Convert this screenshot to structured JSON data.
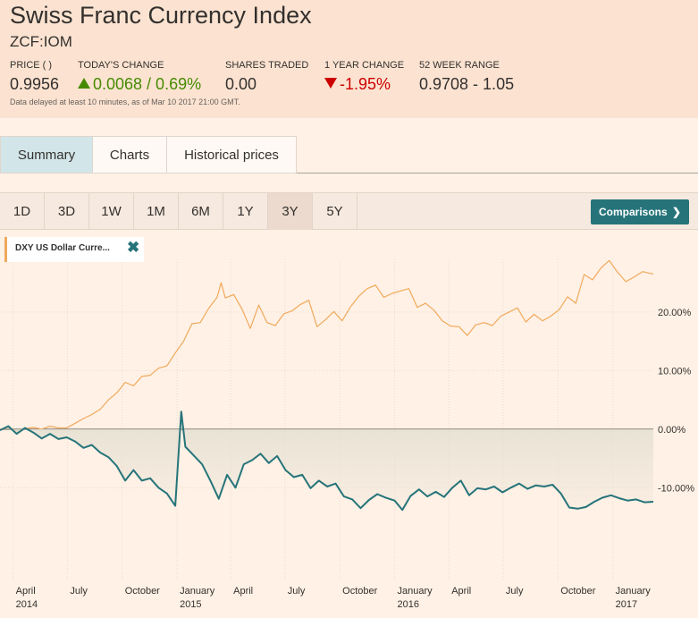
{
  "header": {
    "title": "Swiss Franc Currency Index",
    "ticker": "ZCF:IOM",
    "price_label": "PRICE ( )",
    "price_value": "0.9956",
    "change_label": "TODAY'S CHANGE",
    "change_value": "0.0068 / 0.69%",
    "shares_label": "SHARES TRADED",
    "shares_value": "0.00",
    "year_change_label": "1 YEAR CHANGE",
    "year_change_value": "-1.95%",
    "range_label": "52 WEEK RANGE",
    "range_value": "0.9708 - 1.05",
    "disclaimer": "Data delayed at least 10 minutes, as of Mar 10 2017 21:00 GMT.",
    "up_color": "#458b00",
    "down_color": "#cc0000"
  },
  "tabs": [
    {
      "label": "Summary",
      "active": true
    },
    {
      "label": "Charts",
      "active": false
    },
    {
      "label": "Historical prices",
      "active": false
    }
  ],
  "ranges": [
    {
      "label": "1D",
      "active": false
    },
    {
      "label": "3D",
      "active": false
    },
    {
      "label": "1W",
      "active": false
    },
    {
      "label": "1M",
      "active": false
    },
    {
      "label": "6M",
      "active": false
    },
    {
      "label": "1Y",
      "active": false
    },
    {
      "label": "3Y",
      "active": true
    },
    {
      "label": "5Y",
      "active": false
    }
  ],
  "comparisons_label": "Comparisons",
  "comparisons_icon": "chevron-right-icon",
  "legend": {
    "label": "DXY US Dollar Curre...",
    "remove_icon": "close-icon",
    "color": "#f0a95c"
  },
  "chart_data": {
    "type": "line",
    "y_tick_labels": [
      "20.00%",
      "10.00%",
      "0.00%",
      "-10.00%"
    ],
    "y_ticks": [
      20,
      10,
      0,
      -10
    ],
    "ylim": [
      -26,
      29
    ],
    "x_tick_labels": [
      {
        "month": "April",
        "year": "2014",
        "date": "2014-04-01"
      },
      {
        "month": "July",
        "year": "",
        "date": "2014-07-01"
      },
      {
        "month": "October",
        "year": "",
        "date": "2014-10-01"
      },
      {
        "month": "January",
        "year": "2015",
        "date": "2015-01-01"
      },
      {
        "month": "April",
        "year": "",
        "date": "2015-04-01"
      },
      {
        "month": "July",
        "year": "",
        "date": "2015-07-01"
      },
      {
        "month": "October",
        "year": "",
        "date": "2015-10-01"
      },
      {
        "month": "January",
        "year": "2016",
        "date": "2016-01-01"
      },
      {
        "month": "April",
        "year": "",
        "date": "2016-04-01"
      },
      {
        "month": "July",
        "year": "",
        "date": "2016-07-01"
      },
      {
        "month": "October",
        "year": "",
        "date": "2016-10-01"
      },
      {
        "month": "January",
        "year": "2017",
        "date": "2017-01-01"
      }
    ],
    "xlim": [
      "2014-03-10",
      "2017-03-10"
    ],
    "series": [
      {
        "name": "DXY US Dollar Curre...",
        "color": "#f0a95c",
        "fill": false,
        "points": [
          [
            "2014-03-10",
            0.0
          ],
          [
            "2014-03-24",
            0.2
          ],
          [
            "2014-04-07",
            -0.3
          ],
          [
            "2014-04-21",
            0.1
          ],
          [
            "2014-05-05",
            0.3
          ],
          [
            "2014-05-19",
            0.0
          ],
          [
            "2014-06-02",
            0.5
          ],
          [
            "2014-06-16",
            0.2
          ],
          [
            "2014-06-30",
            0.2
          ],
          [
            "2014-07-14",
            1.0
          ],
          [
            "2014-07-28",
            1.8
          ],
          [
            "2014-08-11",
            2.5
          ],
          [
            "2014-08-25",
            3.4
          ],
          [
            "2014-09-08",
            5.0
          ],
          [
            "2014-09-22",
            6.2
          ],
          [
            "2014-10-06",
            8.0
          ],
          [
            "2014-10-20",
            7.4
          ],
          [
            "2014-11-03",
            9.0
          ],
          [
            "2014-11-17",
            9.2
          ],
          [
            "2014-12-01",
            10.4
          ],
          [
            "2014-12-15",
            10.8
          ],
          [
            "2014-12-29",
            13.0
          ],
          [
            "2015-01-12",
            15.0
          ],
          [
            "2015-01-26",
            18.0
          ],
          [
            "2015-02-09",
            18.2
          ],
          [
            "2015-02-23",
            20.6
          ],
          [
            "2015-03-09",
            22.5
          ],
          [
            "2015-03-16",
            25.0
          ],
          [
            "2015-03-23",
            22.4
          ],
          [
            "2015-04-06",
            23.0
          ],
          [
            "2015-04-20",
            20.5
          ],
          [
            "2015-05-04",
            17.2
          ],
          [
            "2015-05-18",
            21.2
          ],
          [
            "2015-06-01",
            18.2
          ],
          [
            "2015-06-15",
            17.7
          ],
          [
            "2015-06-29",
            19.7
          ],
          [
            "2015-07-13",
            20.2
          ],
          [
            "2015-07-27",
            21.3
          ],
          [
            "2015-08-10",
            22.0
          ],
          [
            "2015-08-24",
            17.5
          ],
          [
            "2015-09-07",
            18.7
          ],
          [
            "2015-09-21",
            20.1
          ],
          [
            "2015-10-05",
            18.5
          ],
          [
            "2015-10-19",
            20.9
          ],
          [
            "2015-11-02",
            22.7
          ],
          [
            "2015-11-16",
            24.0
          ],
          [
            "2015-11-30",
            24.6
          ],
          [
            "2015-12-14",
            22.5
          ],
          [
            "2015-12-28",
            23.2
          ],
          [
            "2016-01-11",
            23.6
          ],
          [
            "2016-01-25",
            24.0
          ],
          [
            "2016-02-08",
            20.8
          ],
          [
            "2016-02-22",
            21.5
          ],
          [
            "2016-03-07",
            20.3
          ],
          [
            "2016-03-21",
            18.5
          ],
          [
            "2016-04-04",
            17.6
          ],
          [
            "2016-04-18",
            17.5
          ],
          [
            "2016-05-02",
            16.0
          ],
          [
            "2016-05-16",
            17.8
          ],
          [
            "2016-05-30",
            18.2
          ],
          [
            "2016-06-13",
            17.7
          ],
          [
            "2016-06-27",
            19.3
          ],
          [
            "2016-07-11",
            20.0
          ],
          [
            "2016-07-25",
            20.7
          ],
          [
            "2016-08-08",
            18.3
          ],
          [
            "2016-08-22",
            19.6
          ],
          [
            "2016-09-05",
            18.5
          ],
          [
            "2016-09-19",
            19.3
          ],
          [
            "2016-10-03",
            20.4
          ],
          [
            "2016-10-17",
            22.6
          ],
          [
            "2016-10-31",
            21.5
          ],
          [
            "2016-11-14",
            26.4
          ],
          [
            "2016-11-28",
            25.5
          ],
          [
            "2016-12-12",
            27.5
          ],
          [
            "2016-12-26",
            28.8
          ],
          [
            "2017-01-09",
            26.8
          ],
          [
            "2017-01-23",
            25.2
          ],
          [
            "2017-02-06",
            26.0
          ],
          [
            "2017-02-20",
            26.9
          ],
          [
            "2017-03-10",
            26.5
          ]
        ]
      },
      {
        "name": "ZCF:IOM",
        "color": "#26747a",
        "fill": true,
        "fill_color": "#e3dfd1",
        "points": [
          [
            "2014-03-10",
            -0.2
          ],
          [
            "2014-03-24",
            0.5
          ],
          [
            "2014-04-07",
            -0.8
          ],
          [
            "2014-04-21",
            0.2
          ],
          [
            "2014-05-05",
            -0.6
          ],
          [
            "2014-05-19",
            -1.6
          ],
          [
            "2014-06-02",
            -0.8
          ],
          [
            "2014-06-16",
            -1.7
          ],
          [
            "2014-06-30",
            -1.4
          ],
          [
            "2014-07-14",
            -2.1
          ],
          [
            "2014-07-28",
            -3.2
          ],
          [
            "2014-08-11",
            -2.7
          ],
          [
            "2014-08-25",
            -4.0
          ],
          [
            "2014-09-08",
            -4.8
          ],
          [
            "2014-09-22",
            -6.3
          ],
          [
            "2014-10-06",
            -8.8
          ],
          [
            "2014-10-20",
            -7.0
          ],
          [
            "2014-11-03",
            -8.8
          ],
          [
            "2014-11-17",
            -8.4
          ],
          [
            "2014-12-01",
            -10.0
          ],
          [
            "2014-12-15",
            -11.0
          ],
          [
            "2014-12-29",
            -13.1
          ],
          [
            "2015-01-08",
            3.0
          ],
          [
            "2015-01-15",
            -3.0
          ],
          [
            "2015-01-29",
            -4.5
          ],
          [
            "2015-02-12",
            -6.0
          ],
          [
            "2015-02-26",
            -8.8
          ],
          [
            "2015-03-12",
            -11.9
          ],
          [
            "2015-03-26",
            -7.8
          ],
          [
            "2015-04-09",
            -10.0
          ],
          [
            "2015-04-23",
            -6.0
          ],
          [
            "2015-05-07",
            -5.3
          ],
          [
            "2015-05-21",
            -4.2
          ],
          [
            "2015-06-04",
            -5.8
          ],
          [
            "2015-06-18",
            -4.6
          ],
          [
            "2015-07-02",
            -7.0
          ],
          [
            "2015-07-16",
            -8.2
          ],
          [
            "2015-07-30",
            -7.8
          ],
          [
            "2015-08-13",
            -10.1
          ],
          [
            "2015-08-27",
            -8.8
          ],
          [
            "2015-09-10",
            -9.8
          ],
          [
            "2015-09-24",
            -9.3
          ],
          [
            "2015-10-08",
            -11.5
          ],
          [
            "2015-10-22",
            -12.0
          ],
          [
            "2015-11-05",
            -13.5
          ],
          [
            "2015-11-19",
            -12.1
          ],
          [
            "2015-12-03",
            -11.1
          ],
          [
            "2015-12-17",
            -11.7
          ],
          [
            "2016-01-01",
            -12.2
          ],
          [
            "2016-01-14",
            -13.8
          ],
          [
            "2016-01-28",
            -11.4
          ],
          [
            "2016-02-11",
            -10.3
          ],
          [
            "2016-02-25",
            -11.5
          ],
          [
            "2016-03-10",
            -10.7
          ],
          [
            "2016-03-24",
            -11.6
          ],
          [
            "2016-04-07",
            -10.0
          ],
          [
            "2016-04-21",
            -8.8
          ],
          [
            "2016-05-05",
            -11.3
          ],
          [
            "2016-05-19",
            -10.1
          ],
          [
            "2016-06-02",
            -10.3
          ],
          [
            "2016-06-16",
            -9.8
          ],
          [
            "2016-06-30",
            -10.8
          ],
          [
            "2016-07-14",
            -10.0
          ],
          [
            "2016-07-28",
            -9.3
          ],
          [
            "2016-08-11",
            -10.2
          ],
          [
            "2016-08-25",
            -9.6
          ],
          [
            "2016-09-08",
            -9.8
          ],
          [
            "2016-09-22",
            -9.5
          ],
          [
            "2016-10-06",
            -11.0
          ],
          [
            "2016-10-20",
            -13.4
          ],
          [
            "2016-11-03",
            -13.6
          ],
          [
            "2016-11-17",
            -13.3
          ],
          [
            "2016-12-01",
            -12.4
          ],
          [
            "2016-12-15",
            -11.7
          ],
          [
            "2016-12-29",
            -11.3
          ],
          [
            "2017-01-12",
            -11.8
          ],
          [
            "2017-01-26",
            -12.2
          ],
          [
            "2017-02-09",
            -12.0
          ],
          [
            "2017-02-23",
            -12.5
          ],
          [
            "2017-03-10",
            -12.4
          ]
        ]
      }
    ]
  }
}
